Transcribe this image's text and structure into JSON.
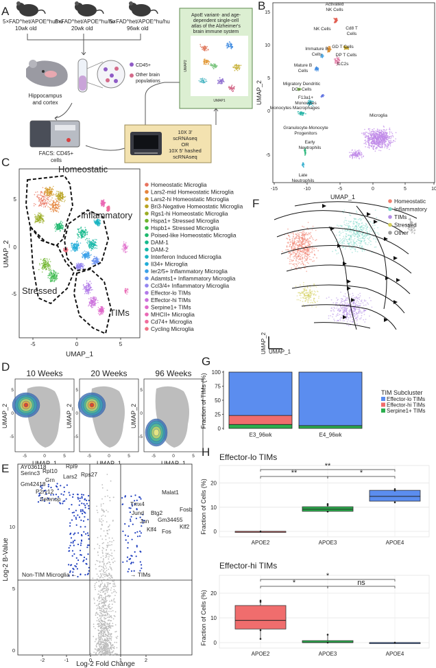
{
  "panel_letters": [
    "A",
    "B",
    "C",
    "D",
    "E",
    "F",
    "G",
    "H"
  ],
  "panelA": {
    "mice": [
      {
        "genotype": "5×FAD^het/APOE^hu/hu",
        "age": "10wk old"
      },
      {
        "genotype": "5×FAD^het/APOE^hu/hu",
        "age": "20wk old"
      },
      {
        "genotype": "5×FAD^het/APOE^hu/hu",
        "age": "96wk old"
      }
    ],
    "tissue": [
      "Hippocampus",
      "and cortex"
    ],
    "tube_labels": [
      "CD45+",
      "Other brain",
      "populations"
    ],
    "facs": [
      "FACS: CD45+",
      "cells"
    ],
    "atlas_title": [
      "ApoE variant- and age-",
      "dependent single-cell",
      "atlas of the Alzheimer's",
      "brain immune system"
    ],
    "atlas_x": "UMAP1",
    "atlas_y": "UMAP2",
    "seq": [
      "10X 3'",
      "scRNAseq",
      "OR",
      "10X 5' hashed",
      "scRNAseq"
    ]
  },
  "panelB": {
    "xlabel": "UMAP_1",
    "ylabel": "UMAP_2",
    "xticks": [
      "-15",
      "-10",
      "-5",
      "0",
      "5",
      "10"
    ],
    "yticks": [
      "15",
      "10",
      "5",
      "0",
      "-5"
    ],
    "labels": [
      {
        "text": [
          "Activated",
          "NK Cells"
        ]
      },
      {
        "text": [
          "NK Cells"
        ]
      },
      {
        "text": [
          "Cd8 T",
          "Cells"
        ]
      },
      {
        "text": [
          "GD T Cells"
        ]
      },
      {
        "text": [
          "DP T Cells"
        ]
      },
      {
        "text": [
          "Immature B",
          "Cells"
        ]
      },
      {
        "text": [
          "ILC2s"
        ]
      },
      {
        "text": [
          "Mature B",
          "Cells"
        ]
      },
      {
        "text": [
          "Migratory Dendritic",
          "DCs        Cells"
        ]
      },
      {
        "text": [
          "F13a1+",
          "Monocytes"
        ]
      },
      {
        "text": [
          "Monocytes Macrophages"
        ]
      },
      {
        "text": [
          "Microglia"
        ]
      },
      {
        "text": [
          "Granulocyte-Monocyte",
          "Progenitors"
        ]
      },
      {
        "text": [
          "Early",
          "Neutrophils"
        ]
      },
      {
        "text": [
          "Late",
          "Neutrophils"
        ]
      }
    ]
  },
  "panelC": {
    "xlabel": "UMAP_1",
    "ylabel": "UMAP_2",
    "xticks": [
      "-5",
      "0",
      "5"
    ],
    "yticks": [
      "5",
      "0",
      "-5"
    ],
    "regions": [
      "Homeostatic",
      "Inflammatory",
      "Stressed",
      "TIMs"
    ],
    "legend": [
      {
        "name": "Homeostatic Microglia",
        "color": "#e8735e"
      },
      {
        "name": "Lars2-mid Homeostatic Microglia",
        "color": "#e5843c"
      },
      {
        "name": "Lars2-hi Homeostatic Microglia",
        "color": "#d39a2a"
      },
      {
        "name": "Bri3-Negative Homeostatic Microglia",
        "color": "#b9a423"
      },
      {
        "name": "Rgs1-hi Homeostatic Microglia",
        "color": "#9aac22"
      },
      {
        "name": "Hspa1+ Stressed Microglia",
        "color": "#6eb42c"
      },
      {
        "name": "Hspb1+ Stressed Microglia",
        "color": "#38b84a"
      },
      {
        "name": "Poised-like Homeostatic Microglia",
        "color": "#1eb86e"
      },
      {
        "name": "DAM-1",
        "color": "#14b98c"
      },
      {
        "name": "DAM-2",
        "color": "#16b8a8"
      },
      {
        "name": "Interferon Induced Microglia",
        "color": "#1ab4c2"
      },
      {
        "name": "Il34+ Microglia",
        "color": "#22acd8"
      },
      {
        "name": "Ier2/5+ Inflammatory Microglia",
        "color": "#3aa0e8"
      },
      {
        "name": "Adamts1+ Inflammatory Microglia",
        "color": "#6a92f0"
      },
      {
        "name": "Ccl3/4+ Inflammatory Microglia",
        "color": "#9485f0"
      },
      {
        "name": "Effector-lo TIMs",
        "color": "#b27ae8"
      },
      {
        "name": "Effector-hi TIMs",
        "color": "#cc70dc"
      },
      {
        "name": "Serpine1+ TIMs",
        "color": "#e06acb"
      },
      {
        "name": "MHCII+ Microglia",
        "color": "#ea68b4"
      },
      {
        "name": "Cd74+ Microglia",
        "color": "#f06c9c"
      },
      {
        "name": "Cycling Microglia",
        "color": "#f07486"
      }
    ]
  },
  "panelD": {
    "titles": [
      "10 Weeks",
      "20 Weeks",
      "96 Weeks"
    ],
    "xlabel": "UMAP_1",
    "ylabel": "UMAP_2",
    "xticks": [
      "-5",
      "0",
      "5"
    ],
    "yticks": [
      "5",
      "0",
      "-5"
    ]
  },
  "panelE": {
    "xlabel": "Log-2 Fold Change",
    "ylabel": "Log-2 B-Value",
    "xticks": [
      "-2",
      "-1",
      "0",
      "1",
      "2"
    ],
    "yticks": [
      "10",
      "5",
      "0"
    ],
    "left_note": "Non-TIM Microglia ←",
    "right_note": "→ TIMs",
    "genes": [
      "AY036118",
      "Serinc3",
      "Rpl10",
      "Rpl9",
      "Grn",
      "Lars2",
      "Rps27",
      "Gm42418",
      "P2ry12",
      "Selenop",
      "Malat1",
      "Tmx4",
      "Jund",
      "Btg2",
      "Fosb",
      "Jun",
      "Gm34455",
      "Klf4",
      "Klf2",
      "Fos"
    ]
  },
  "panelF": {
    "xlabel": "UMAP_1",
    "ylabel": "UMAP_2",
    "legend": [
      {
        "name": "Homeostatic",
        "color": "#f0806e"
      },
      {
        "name": "Inflammatory",
        "color": "#7ad8c8"
      },
      {
        "name": "TIMs",
        "color": "#b58fe6"
      },
      {
        "name": "Stressed",
        "color": "#d4cf5a"
      },
      {
        "name": "Other",
        "color": "#9c9c9c"
      }
    ]
  },
  "panelG": {
    "ylabel": "Fraction of TIMs (%)",
    "legend_title": "TIM Subcluster",
    "chart_data": {
      "type": "bar",
      "categories": [
        "E3_96wk",
        "E4_96wk"
      ],
      "series": [
        {
          "name": "Effector-lo TIMs",
          "color": "#5b8def",
          "values": [
            77,
            95
          ]
        },
        {
          "name": "Effector-hi TIMs",
          "color": "#f06d6d",
          "values": [
            16,
            0
          ]
        },
        {
          "name": "Serpine1+ TIMs",
          "color": "#2cae4e",
          "values": [
            7,
            5
          ]
        }
      ],
      "yticks": [
        "0",
        "25",
        "50",
        "75",
        "100"
      ],
      "ylim": [
        0,
        100
      ]
    }
  },
  "panelH": {
    "ylabel": "Fraction of Cells (%)",
    "plots": [
      {
        "title": "Effector-lo TIMs",
        "categories": [
          "APOE2",
          "APOE3",
          "APOE4"
        ],
        "color": [
          "#f06d6d",
          "#2cae4e",
          "#5b8def"
        ],
        "yticks": [
          "0",
          "10",
          "20"
        ],
        "ylim": [
          0,
          25
        ],
        "boxes": [
          {
            "q1": 0,
            "median": 0,
            "q3": 0,
            "min": 0,
            "max": 0,
            "points": [
              0
            ]
          },
          {
            "q1": 8.3,
            "median": 9.2,
            "q3": 10.2,
            "min": 7.8,
            "max": 11.5,
            "points": [
              8.2,
              10.8,
              11.3
            ]
          },
          {
            "q1": 12.5,
            "median": 14.5,
            "q3": 17,
            "min": 11.8,
            "max": 17.7,
            "points": [
              12,
              17.5,
              16.9
            ]
          }
        ],
        "sig": [
          "**",
          "**",
          "*"
        ]
      },
      {
        "title": "Effector-hi TIMs",
        "categories": [
          "APOE2",
          "APOE3",
          "APOE4"
        ],
        "color": [
          "#f06d6d",
          "#2cae4e",
          "#5b8def"
        ],
        "yticks": [
          "0",
          "10",
          "20"
        ],
        "ylim": [
          0,
          25
        ],
        "boxes": [
          {
            "q1": 5.5,
            "median": 9,
            "q3": 15,
            "min": 1.5,
            "max": 17,
            "points": [
              1.5,
              5,
              16.5,
              17
            ]
          },
          {
            "q1": 0,
            "median": 0,
            "q3": 0.8,
            "min": 0,
            "max": 3.2,
            "points": [
              3.2,
              0
            ]
          },
          {
            "q1": 0,
            "median": 0,
            "q3": 0,
            "min": 0,
            "max": 0,
            "points": [
              0
            ]
          }
        ],
        "sig": [
          "*",
          "*",
          "ns"
        ]
      }
    ]
  }
}
